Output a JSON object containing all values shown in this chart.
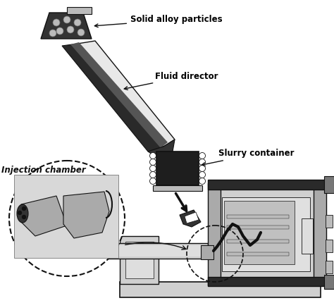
{
  "background_color": "#ffffff",
  "labels": {
    "solid_alloy": "Solid alloy particles",
    "fluid_director": "Fluid director",
    "slurry_container": "Slurry container",
    "injection_chamber": "Injection chamber"
  },
  "label_fontsize": 8.5,
  "label_fontweight": "bold",
  "colors": {
    "dark": "#111111",
    "mid_dark": "#333333",
    "mid": "#777777",
    "light_gray": "#bbbbbb",
    "lighter_gray": "#cccccc",
    "very_light": "#dedede",
    "white": "#ffffff",
    "tube_light": "#e8e8e8",
    "tube_dark": "#2a2a2a",
    "container_dark": "#1e1e1e",
    "machine_light": "#d0d0d0",
    "machine_mid": "#aaaaaa",
    "machine_dark": "#666666",
    "rod_dark": "#2a2a2a",
    "panel_gray": "#c0c0c0",
    "inner_panel": "#e0e0e0",
    "img_box": "#d8d8d8"
  },
  "figsize": [
    4.74,
    4.3
  ],
  "dpi": 100
}
